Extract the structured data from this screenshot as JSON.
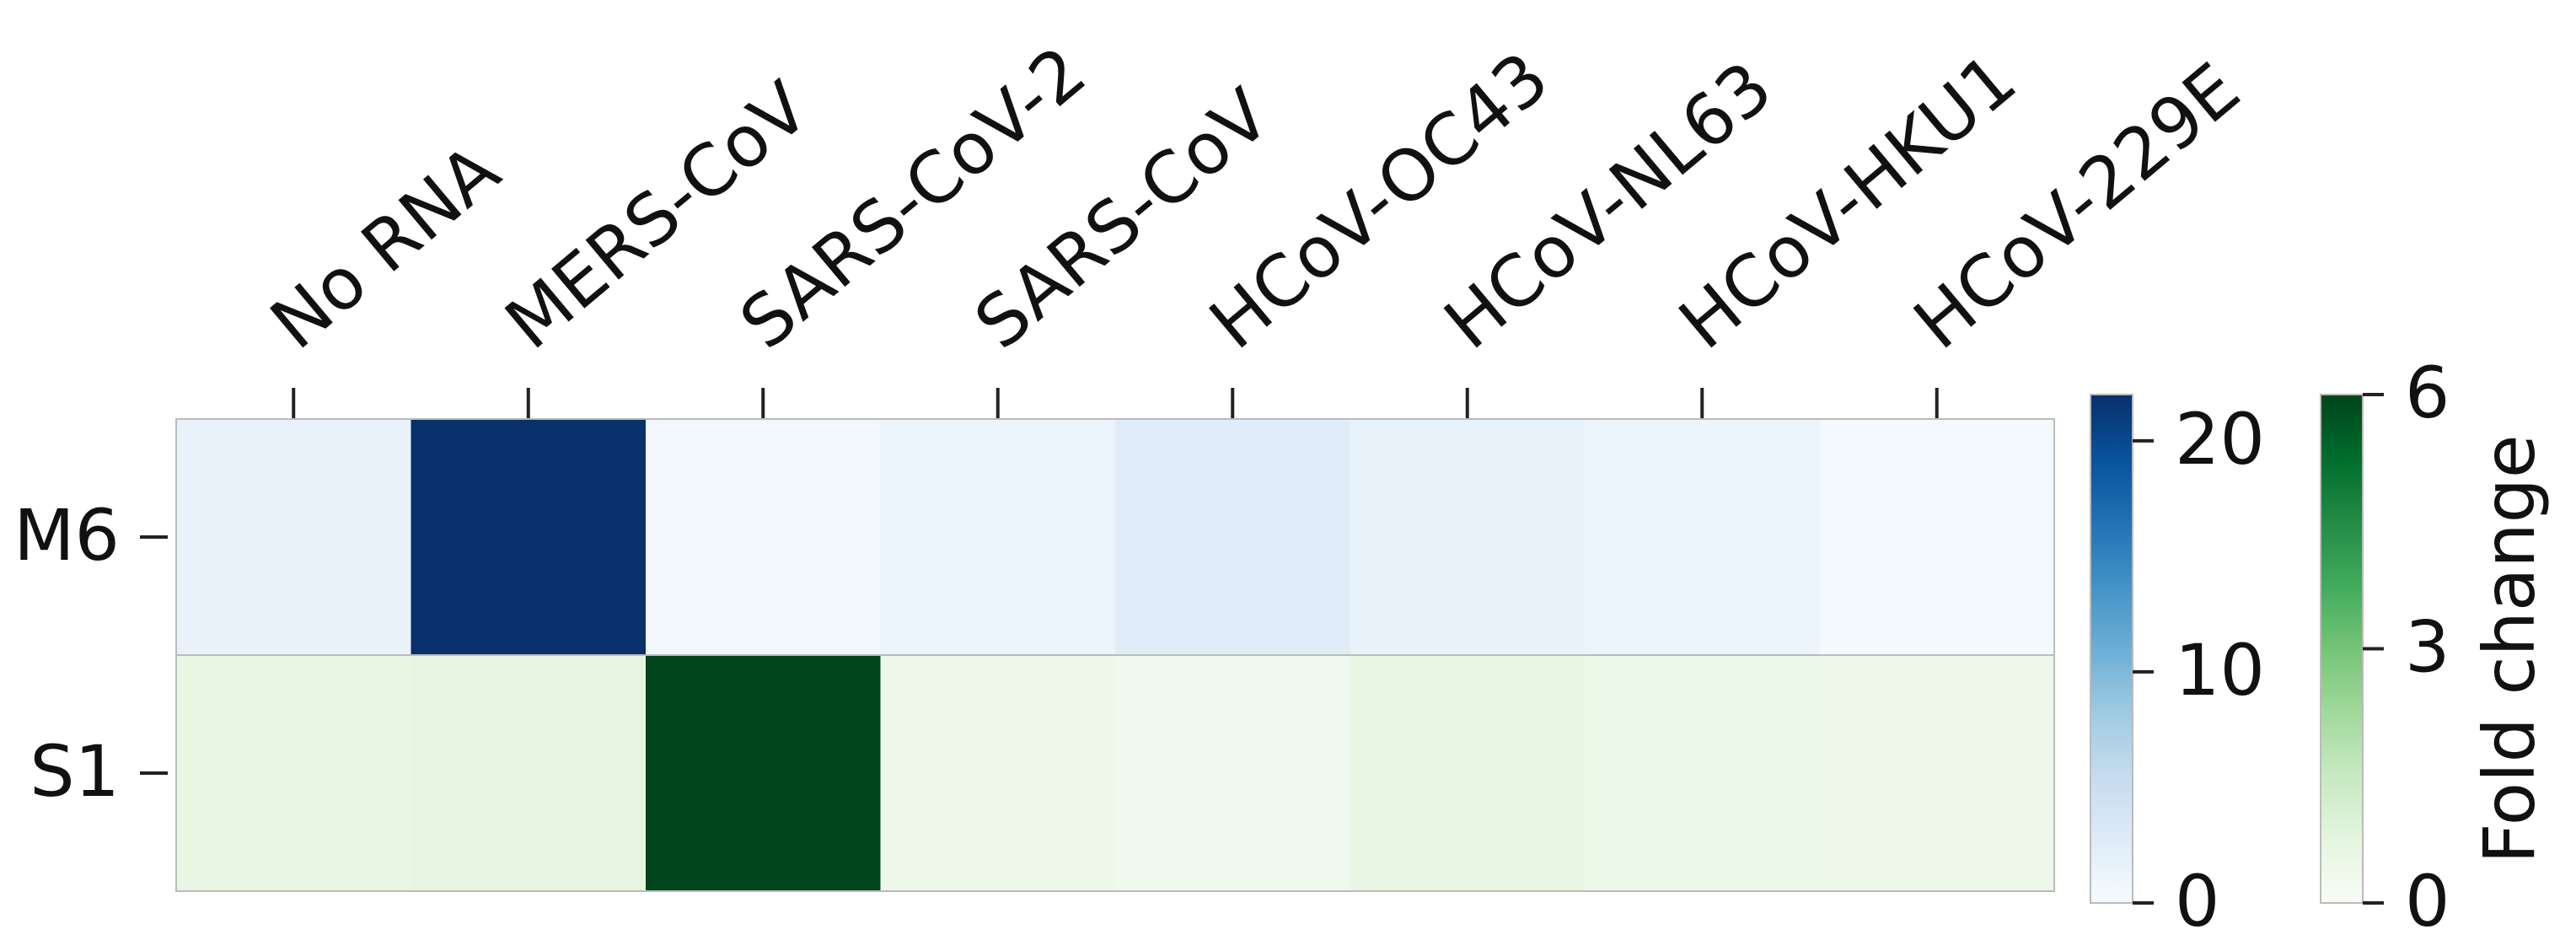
{
  "chart_data": {
    "type": "heatmap",
    "columns": [
      "No RNA",
      "MERS-CoV",
      "SARS-CoV-2",
      "SARS-CoV",
      "HCoV-OC43",
      "HCoV-NL63",
      "HCoV-HKU1",
      "HCoV-229E"
    ],
    "rows": [
      {
        "name": "M6",
        "colormap": "Blues",
        "vlim": [
          0,
          22
        ],
        "ticks": [
          0,
          10,
          20
        ],
        "values": [
          1.5,
          22,
          0.5,
          1.2,
          2.5,
          1.6,
          1.2,
          0.3
        ]
      },
      {
        "name": "S1",
        "colormap": "Greens",
        "vlim": [
          0,
          6
        ],
        "ticks": [
          0,
          3,
          6
        ],
        "label": "Fold change",
        "values": [
          0.6,
          0.7,
          6,
          0.4,
          0.3,
          0.6,
          0.45,
          0.4
        ]
      }
    ]
  }
}
